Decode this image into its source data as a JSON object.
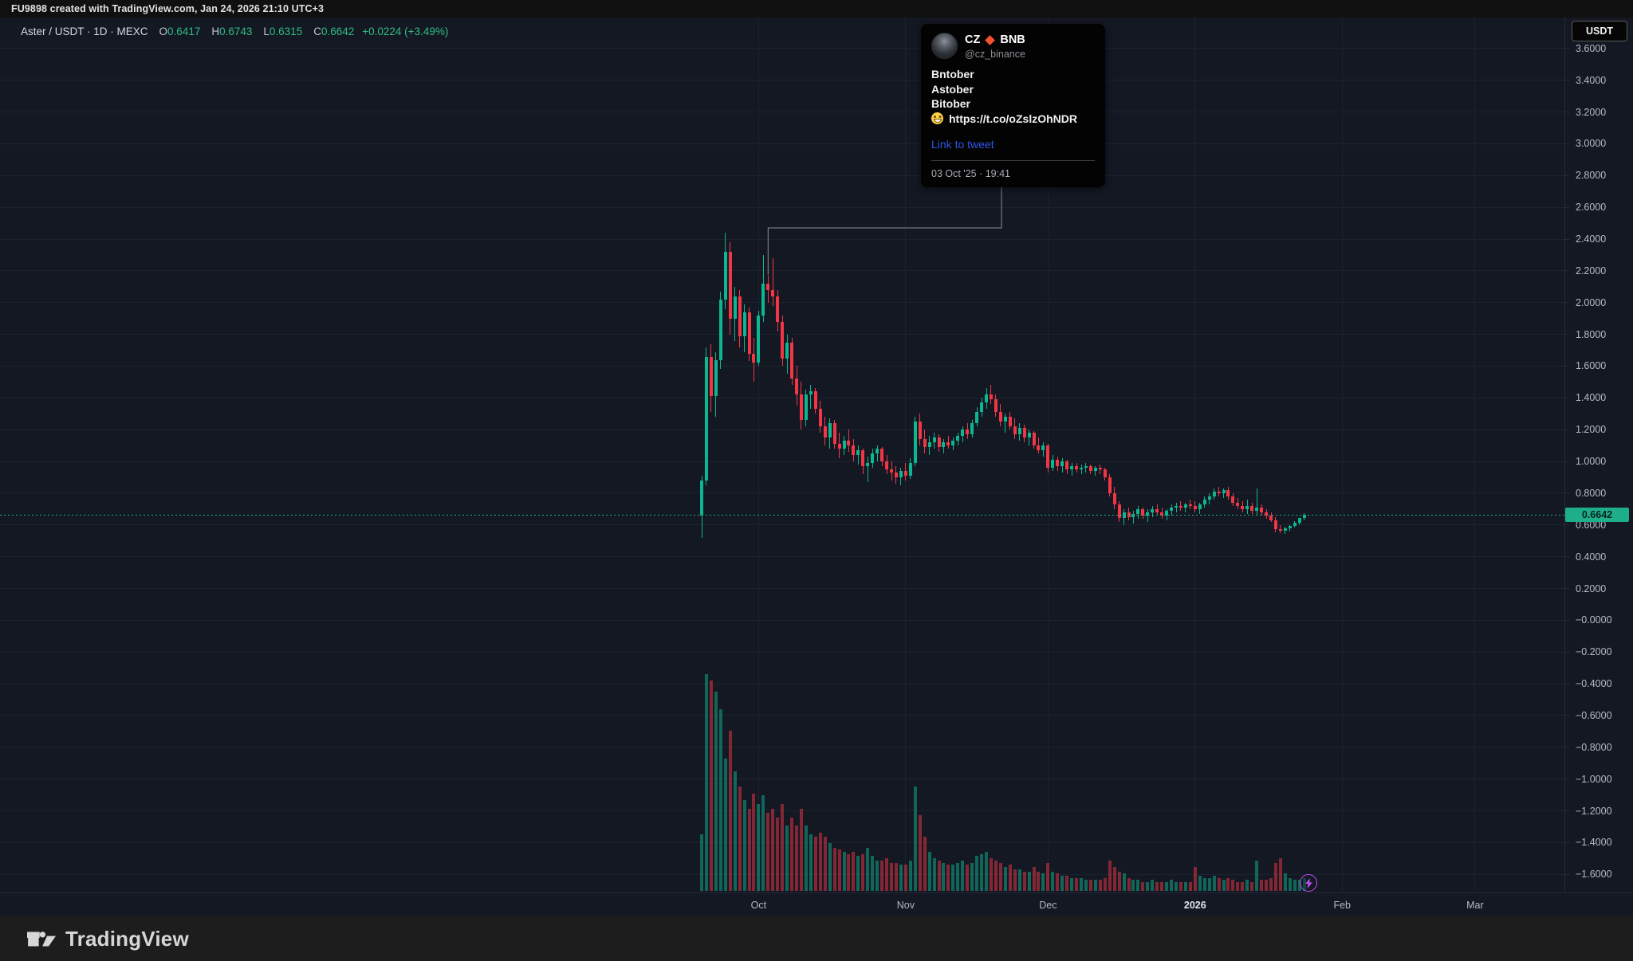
{
  "top_bar": {
    "text": "FU9898 created with TradingView.com, Jan 24, 2026 21:10 UTC+3"
  },
  "legend": {
    "symbol": "Aster / USDT · 1D · MEXC",
    "open_label": "O",
    "open": "0.6417",
    "high_label": "H",
    "high": "0.6743",
    "low_label": "L",
    "low": "0.6315",
    "close_label": "C",
    "close": "0.6642",
    "change": "+0.0224 (+3.49%)"
  },
  "price_scale": {
    "currency_button": "USDT",
    "last_price": "0.6642"
  },
  "tooltip": {
    "name": "CZ",
    "badge": "BNB",
    "handle": "@cz_binance",
    "lines": [
      "Bntober",
      "Astober",
      "Bitober"
    ],
    "url": "https://t.co/oZslzOhNDR",
    "link_label": "Link to tweet",
    "timestamp": "03 Oct '25 · 19:41"
  },
  "footer": {
    "brand": "TradingView"
  },
  "chart_data": {
    "type": "candlestick",
    "title": "Aster / USDT · 1D · MEXC",
    "interval": "1D",
    "series_start_date": "2025-09-19",
    "ylim": [
      -1.714,
      3.795
    ],
    "grid": true,
    "y_axis": {
      "tick_step": 0.2,
      "last_price": 0.6642,
      "ticks": [
        {
          "v": 3.6,
          "label": "3.6000"
        },
        {
          "v": 3.4,
          "label": "3.4000"
        },
        {
          "v": 3.2,
          "label": "3.2000"
        },
        {
          "v": 3.0,
          "label": "3.0000"
        },
        {
          "v": 2.8,
          "label": "2.8000"
        },
        {
          "v": 2.6,
          "label": "2.6000"
        },
        {
          "v": 2.4,
          "label": "2.4000"
        },
        {
          "v": 2.2,
          "label": "2.2000"
        },
        {
          "v": 2.0,
          "label": "2.0000"
        },
        {
          "v": 1.8,
          "label": "1.8000"
        },
        {
          "v": 1.6,
          "label": "1.6000"
        },
        {
          "v": 1.4,
          "label": "1.4000"
        },
        {
          "v": 1.2,
          "label": "1.2000"
        },
        {
          "v": 1.0,
          "label": "1.0000"
        },
        {
          "v": 0.8,
          "label": "0.8000"
        },
        {
          "v": 0.6,
          "label": "0.6000"
        },
        {
          "v": 0.4,
          "label": "0.4000"
        },
        {
          "v": 0.2,
          "label": "0.2000"
        },
        {
          "v": 0.0,
          "label": "−0.0000"
        },
        {
          "v": -0.2,
          "label": "−0.2000"
        },
        {
          "v": -0.4,
          "label": "−0.4000"
        },
        {
          "v": -0.6,
          "label": "−0.6000"
        },
        {
          "v": -0.8,
          "label": "−0.8000"
        },
        {
          "v": -1.0,
          "label": "−1.0000"
        },
        {
          "v": -1.2,
          "label": "−1.2000"
        },
        {
          "v": -1.4,
          "label": "−1.4000"
        },
        {
          "v": -1.6,
          "label": "−1.6000"
        }
      ]
    },
    "x_axis": {
      "labels": [
        {
          "label": "Oct",
          "bar_index": 12
        },
        {
          "label": "Nov",
          "bar_index": 43
        },
        {
          "label": "Dec",
          "bar_index": 73
        },
        {
          "label": "2026",
          "bar_index": 104,
          "year": true
        },
        {
          "label": "Feb",
          "bar_index": 135
        },
        {
          "label": "Mar",
          "bar_index": 163
        }
      ]
    },
    "annotation": {
      "anchor_bar_index": 14,
      "anchor_price": 2.17,
      "source": "tweet tooltip (03 Oct '25)"
    },
    "ohlc_readout": {
      "open": 0.6417,
      "high": 0.6743,
      "low": 0.6315,
      "close": 0.6642,
      "change": "+0.0224",
      "change_pct": "+3.49%"
    },
    "colors": {
      "up": "#0cb690",
      "down": "#f23645",
      "last_price_line": "#1fae8a",
      "last_price_text": "#06241c",
      "grid": "#1c2230",
      "legend_green": "#2ebd85",
      "callout": "#8a8e99",
      "badge": "#bd4ff0",
      "link_blue": "#2e55e8",
      "diamond_orange": "#f4532e"
    },
    "volume_note": "5th element of each candle = relative volume 0-100",
    "candles": [
      [
        0.66,
        0.91,
        0.52,
        0.88,
        26
      ],
      [
        0.88,
        1.72,
        0.85,
        1.66,
        100
      ],
      [
        1.66,
        1.74,
        1.31,
        1.41,
        97
      ],
      [
        1.41,
        1.69,
        1.28,
        1.64,
        92
      ],
      [
        1.64,
        2.07,
        1.58,
        2.02,
        84
      ],
      [
        2.02,
        2.44,
        1.96,
        2.32,
        61
      ],
      [
        2.32,
        2.38,
        1.8,
        1.9,
        74
      ],
      [
        1.9,
        2.1,
        1.76,
        2.04,
        55
      ],
      [
        2.04,
        2.08,
        1.72,
        1.79,
        48
      ],
      [
        1.79,
        1.99,
        1.69,
        1.94,
        42
      ],
      [
        1.94,
        1.97,
        1.63,
        1.68,
        38
      ],
      [
        1.68,
        1.78,
        1.5,
        1.62,
        45
      ],
      [
        1.62,
        1.95,
        1.6,
        1.92,
        40
      ],
      [
        1.92,
        2.3,
        1.88,
        2.12,
        44
      ],
      [
        2.12,
        2.17,
        2.0,
        2.08,
        36
      ],
      [
        2.08,
        2.28,
        1.98,
        2.04,
        38
      ],
      [
        2.04,
        2.08,
        1.82,
        1.88,
        34
      ],
      [
        1.88,
        1.92,
        1.6,
        1.65,
        40
      ],
      [
        1.65,
        1.8,
        1.55,
        1.75,
        30
      ],
      [
        1.75,
        1.78,
        1.48,
        1.52,
        34
      ],
      [
        1.52,
        1.6,
        1.35,
        1.42,
        30
      ],
      [
        1.42,
        1.5,
        1.2,
        1.26,
        38
      ],
      [
        1.26,
        1.45,
        1.22,
        1.42,
        30
      ],
      [
        1.42,
        1.48,
        1.33,
        1.44,
        26
      ],
      [
        1.44,
        1.46,
        1.3,
        1.33,
        25
      ],
      [
        1.33,
        1.38,
        1.18,
        1.22,
        27
      ],
      [
        1.22,
        1.28,
        1.1,
        1.15,
        25
      ],
      [
        1.15,
        1.27,
        1.08,
        1.24,
        22
      ],
      [
        1.24,
        1.26,
        1.08,
        1.11,
        20
      ],
      [
        1.11,
        1.18,
        1.02,
        1.08,
        19
      ],
      [
        1.08,
        1.16,
        1.04,
        1.13,
        18
      ],
      [
        1.13,
        1.2,
        1.06,
        1.1,
        17
      ],
      [
        1.1,
        1.14,
        1.0,
        1.04,
        18
      ],
      [
        1.04,
        1.1,
        0.98,
        1.07,
        16
      ],
      [
        1.07,
        1.08,
        0.92,
        0.97,
        17
      ],
      [
        0.97,
        1.03,
        0.87,
        0.99,
        20
      ],
      [
        0.99,
        1.08,
        0.96,
        1.05,
        16
      ],
      [
        1.05,
        1.1,
        1.0,
        1.08,
        14
      ],
      [
        1.08,
        1.09,
        0.97,
        1.0,
        14
      ],
      [
        1.0,
        1.04,
        0.92,
        0.95,
        15
      ],
      [
        0.95,
        1.0,
        0.88,
        0.93,
        13
      ],
      [
        0.93,
        0.97,
        0.86,
        0.9,
        13
      ],
      [
        0.9,
        0.96,
        0.85,
        0.94,
        12
      ],
      [
        0.94,
        0.99,
        0.88,
        0.91,
        12
      ],
      [
        0.91,
        1.02,
        0.89,
        0.99,
        14
      ],
      [
        0.99,
        1.28,
        0.97,
        1.25,
        48
      ],
      [
        1.25,
        1.3,
        1.1,
        1.14,
        35
      ],
      [
        1.14,
        1.2,
        1.05,
        1.09,
        25
      ],
      [
        1.09,
        1.16,
        1.04,
        1.12,
        18
      ],
      [
        1.12,
        1.18,
        1.08,
        1.15,
        15
      ],
      [
        1.15,
        1.17,
        1.06,
        1.09,
        14
      ],
      [
        1.09,
        1.14,
        1.05,
        1.12,
        13
      ],
      [
        1.12,
        1.16,
        1.08,
        1.1,
        12
      ],
      [
        1.1,
        1.15,
        1.07,
        1.13,
        12
      ],
      [
        1.13,
        1.18,
        1.1,
        1.16,
        13
      ],
      [
        1.16,
        1.22,
        1.12,
        1.2,
        14
      ],
      [
        1.2,
        1.24,
        1.14,
        1.17,
        12
      ],
      [
        1.17,
        1.26,
        1.15,
        1.24,
        13
      ],
      [
        1.24,
        1.34,
        1.22,
        1.31,
        16
      ],
      [
        1.31,
        1.4,
        1.28,
        1.37,
        17
      ],
      [
        1.37,
        1.46,
        1.33,
        1.42,
        18
      ],
      [
        1.42,
        1.48,
        1.36,
        1.39,
        15
      ],
      [
        1.39,
        1.42,
        1.28,
        1.31,
        14
      ],
      [
        1.31,
        1.36,
        1.22,
        1.25,
        13
      ],
      [
        1.25,
        1.3,
        1.18,
        1.28,
        11
      ],
      [
        1.28,
        1.31,
        1.2,
        1.22,
        12
      ],
      [
        1.22,
        1.27,
        1.14,
        1.17,
        10
      ],
      [
        1.17,
        1.24,
        1.13,
        1.21,
        10
      ],
      [
        1.21,
        1.23,
        1.12,
        1.15,
        9
      ],
      [
        1.15,
        1.2,
        1.1,
        1.18,
        9
      ],
      [
        1.18,
        1.19,
        1.08,
        1.1,
        11
      ],
      [
        1.1,
        1.15,
        1.05,
        1.07,
        9
      ],
      [
        1.07,
        1.12,
        1.03,
        1.1,
        8
      ],
      [
        1.1,
        1.11,
        0.93,
        0.96,
        13
      ],
      [
        0.96,
        1.04,
        0.94,
        1.01,
        9
      ],
      [
        1.01,
        1.03,
        0.94,
        0.97,
        8
      ],
      [
        0.97,
        1.02,
        0.93,
        1.0,
        7
      ],
      [
        1.0,
        1.01,
        0.92,
        0.95,
        7
      ],
      [
        0.95,
        0.99,
        0.91,
        0.97,
        6
      ],
      [
        0.97,
        0.99,
        0.93,
        0.95,
        6
      ],
      [
        0.95,
        0.98,
        0.92,
        0.96,
        6
      ],
      [
        0.96,
        0.99,
        0.93,
        0.97,
        5
      ],
      [
        0.97,
        0.98,
        0.92,
        0.94,
        5
      ],
      [
        0.94,
        0.97,
        0.91,
        0.96,
        5
      ],
      [
        0.96,
        0.98,
        0.92,
        0.95,
        5
      ],
      [
        0.95,
        0.96,
        0.88,
        0.9,
        6
      ],
      [
        0.9,
        0.92,
        0.78,
        0.8,
        14
      ],
      [
        0.8,
        0.84,
        0.7,
        0.73,
        11
      ],
      [
        0.73,
        0.75,
        0.62,
        0.645,
        9
      ],
      [
        0.645,
        0.7,
        0.6,
        0.68,
        8
      ],
      [
        0.68,
        0.71,
        0.63,
        0.65,
        6
      ],
      [
        0.65,
        0.69,
        0.61,
        0.67,
        5
      ],
      [
        0.67,
        0.72,
        0.64,
        0.7,
        5
      ],
      [
        0.7,
        0.71,
        0.64,
        0.66,
        4
      ],
      [
        0.66,
        0.7,
        0.62,
        0.68,
        4
      ],
      [
        0.68,
        0.72,
        0.65,
        0.7,
        5
      ],
      [
        0.7,
        0.73,
        0.66,
        0.68,
        4
      ],
      [
        0.68,
        0.71,
        0.64,
        0.66,
        4
      ],
      [
        0.66,
        0.7,
        0.63,
        0.69,
        4
      ],
      [
        0.69,
        0.73,
        0.66,
        0.71,
        5
      ],
      [
        0.71,
        0.74,
        0.68,
        0.72,
        4
      ],
      [
        0.72,
        0.75,
        0.69,
        0.71,
        4
      ],
      [
        0.71,
        0.74,
        0.68,
        0.73,
        4
      ],
      [
        0.73,
        0.76,
        0.7,
        0.72,
        4
      ],
      [
        0.72,
        0.75,
        0.68,
        0.7,
        11
      ],
      [
        0.7,
        0.74,
        0.67,
        0.73,
        7
      ],
      [
        0.73,
        0.78,
        0.71,
        0.76,
        6
      ],
      [
        0.76,
        0.8,
        0.73,
        0.78,
        6
      ],
      [
        0.78,
        0.83,
        0.76,
        0.81,
        7
      ],
      [
        0.81,
        0.84,
        0.78,
        0.8,
        6
      ],
      [
        0.8,
        0.83,
        0.77,
        0.82,
        5
      ],
      [
        0.82,
        0.84,
        0.76,
        0.78,
        6
      ],
      [
        0.78,
        0.8,
        0.72,
        0.74,
        5
      ],
      [
        0.74,
        0.77,
        0.7,
        0.72,
        4
      ],
      [
        0.72,
        0.75,
        0.68,
        0.7,
        4
      ],
      [
        0.7,
        0.76,
        0.67,
        0.72,
        5
      ],
      [
        0.72,
        0.74,
        0.67,
        0.69,
        4
      ],
      [
        0.69,
        0.83,
        0.66,
        0.71,
        14
      ],
      [
        0.71,
        0.73,
        0.66,
        0.68,
        5
      ],
      [
        0.68,
        0.7,
        0.64,
        0.66,
        5
      ],
      [
        0.66,
        0.68,
        0.62,
        0.63,
        6
      ],
      [
        0.63,
        0.65,
        0.555,
        0.575,
        13
      ],
      [
        0.575,
        0.6,
        0.55,
        0.565,
        15
      ],
      [
        0.565,
        0.59,
        0.545,
        0.58,
        8
      ],
      [
        0.58,
        0.6,
        0.56,
        0.595,
        6
      ],
      [
        0.595,
        0.625,
        0.585,
        0.615,
        5
      ],
      [
        0.615,
        0.645,
        0.6,
        0.6417,
        5
      ],
      [
        0.6417,
        0.6743,
        0.6315,
        0.6642,
        6
      ]
    ]
  }
}
